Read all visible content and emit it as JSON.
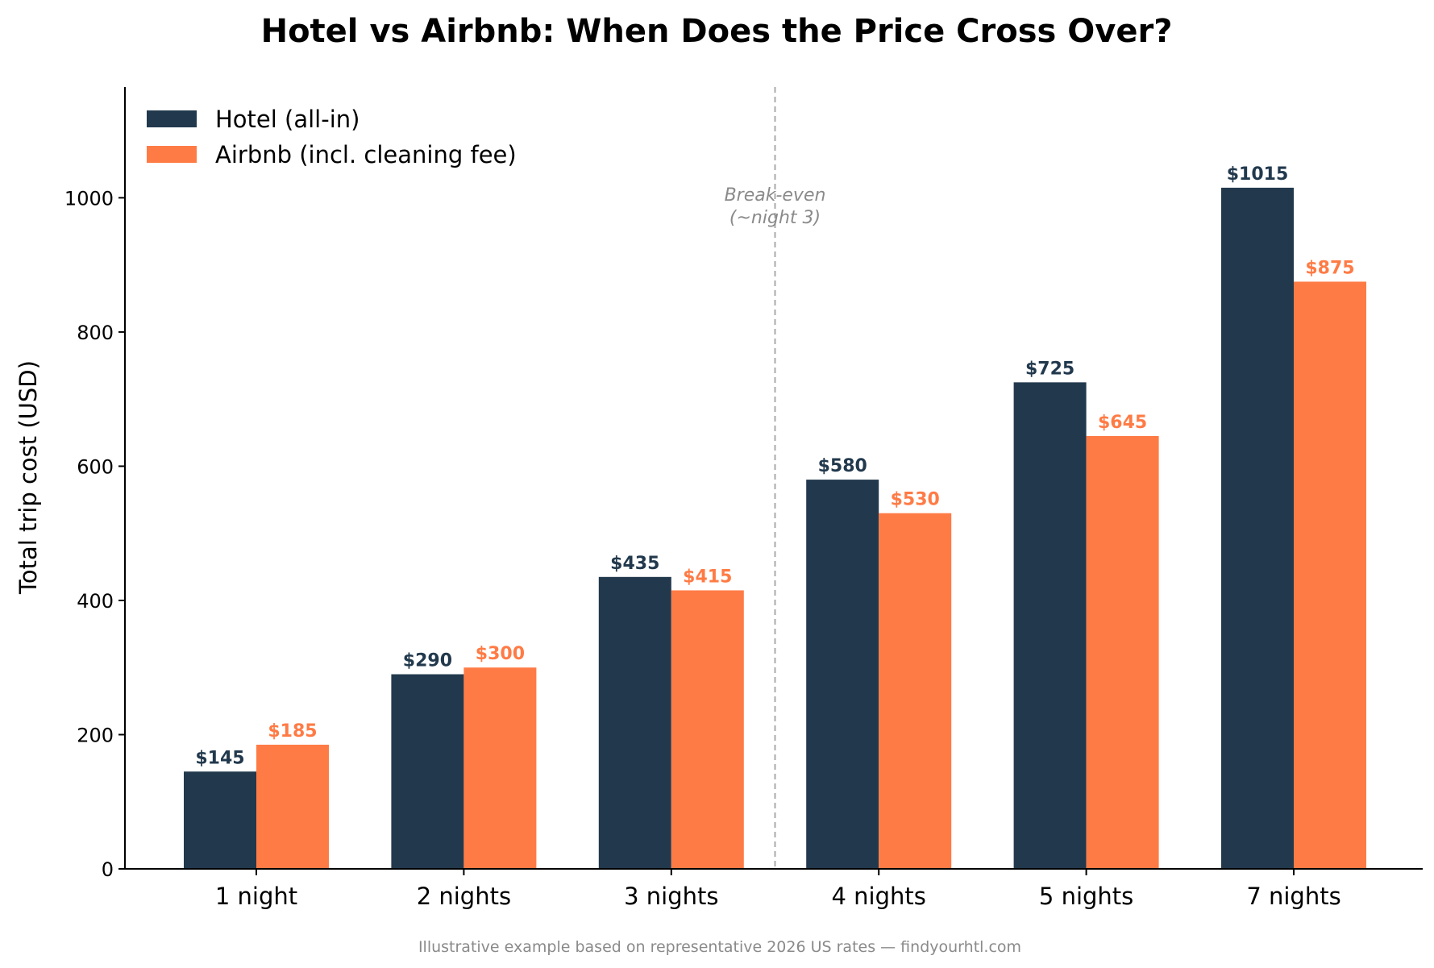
{
  "chart_data": {
    "type": "bar",
    "title": "Hotel vs Airbnb: When Does the Price Cross Over?",
    "xlabel": "",
    "ylabel": "Total trip cost (USD)",
    "ylim": [
      0,
      1165
    ],
    "yticks": [
      0,
      200,
      400,
      600,
      800,
      1000
    ],
    "categories": [
      "1 night",
      "2 nights",
      "3 nights",
      "4 nights",
      "5 nights",
      "7 nights"
    ],
    "series": [
      {
        "name": "Hotel (all-in)",
        "color": "#22394d",
        "values": [
          145,
          290,
          435,
          580,
          725,
          1015
        ],
        "labels": [
          "$145",
          "$290",
          "$435",
          "$580",
          "$725",
          "$1015"
        ]
      },
      {
        "name": "Airbnb (incl. cleaning fee)",
        "color": "#ff7b45",
        "values": [
          185,
          300,
          415,
          530,
          645,
          875
        ],
        "labels": [
          "$185",
          "$300",
          "$415",
          "$530",
          "$645",
          "$875"
        ]
      }
    ],
    "legend_position": "top-left",
    "grid": false,
    "annotation": {
      "lines": [
        "Break-even",
        "(~night 3)"
      ],
      "x_category_position": 2.5,
      "line_style": "dashed",
      "color": "#aaaaaa"
    },
    "footnote": "Illustrative example based on representative 2026 US rates — findyourhtl.com"
  }
}
